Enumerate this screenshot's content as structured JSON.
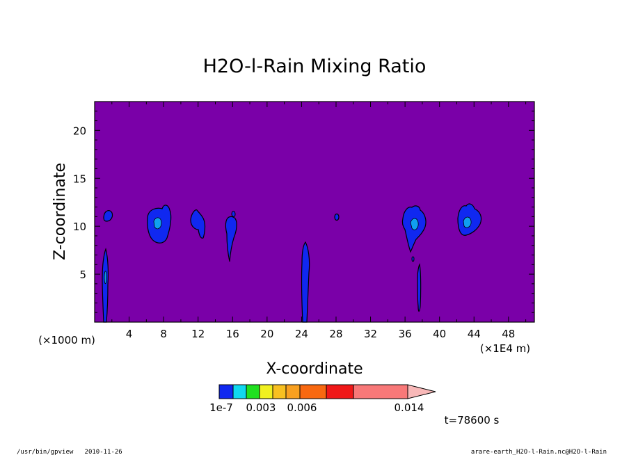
{
  "chart_data": {
    "type": "heatmap",
    "title": "H2O-l-Rain Mixing Ratio",
    "xlabel": "X-coordinate",
    "ylabel": "Z-coordinate",
    "x_unit_left": "(×1000 m)",
    "x_unit_right": "(×1E4 m)",
    "xlim": [
      0,
      51
    ],
    "ylim": [
      0,
      23
    ],
    "x_ticks": [
      "4",
      "8",
      "12",
      "16",
      "20",
      "24",
      "28",
      "32",
      "36",
      "40",
      "44",
      "48"
    ],
    "y_ticks": [
      "5",
      "10",
      "15",
      "20"
    ],
    "background_level_color": "#7a00a8",
    "colorbar": {
      "colors": [
        "#1028f0",
        "#10d8f0",
        "#20e020",
        "#f0f020",
        "#f8c020",
        "#f8a020",
        "#f86810",
        "#f01818",
        "#f87878",
        "#f8b8b8"
      ],
      "tick_labels": [
        "1e-7",
        "0.003",
        "0.006",
        "0.014"
      ]
    },
    "regions": [
      {
        "x": 1.6,
        "z": 11.2,
        "level": 1
      },
      {
        "x": 7.5,
        "z": 10.2,
        "level": 1
      },
      {
        "x": 12.0,
        "z": 10.4,
        "level": 1
      },
      {
        "x": 15.8,
        "z": 9.5,
        "level": 1
      },
      {
        "x": 28.0,
        "z": 11.0,
        "level": 1
      },
      {
        "x": 37.4,
        "z": 10.2,
        "level": 1
      },
      {
        "x": 43.6,
        "z": 10.6,
        "level": 1
      },
      {
        "x": 1.3,
        "z": 3.5,
        "level": 1
      },
      {
        "x": 24.5,
        "z": 4.5,
        "level": 1
      },
      {
        "x": 37.8,
        "z": 3.5,
        "level": 1
      }
    ],
    "time_label": "t=78600 s"
  },
  "footer": {
    "left": "/usr/bin/gpview   2010-11-26",
    "right": "arare-earth_H2O-l-Rain.nc@H2O-l-Rain"
  }
}
